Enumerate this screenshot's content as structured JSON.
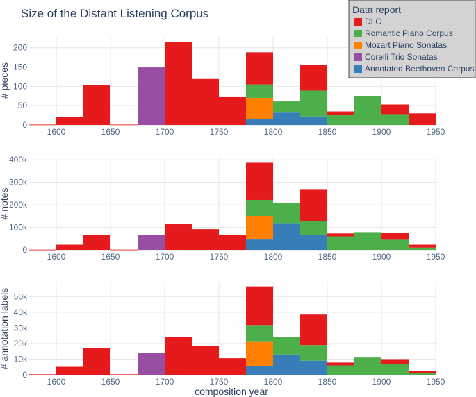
{
  "chart_data": {
    "type": "bar",
    "title": "Size of the Distant Listening Corpus",
    "xlabel": "composition year",
    "x_range": [
      1575,
      1950
    ],
    "x_ticks": [
      1600,
      1650,
      1700,
      1750,
      1800,
      1850,
      1900,
      1950
    ],
    "bin_width": 25,
    "bin_starts": [
      1575,
      1600,
      1625,
      1650,
      1675,
      1700,
      1725,
      1750,
      1775,
      1800,
      1825,
      1850,
      1875,
      1900,
      1925
    ],
    "barmode": "stack",
    "legend": {
      "title": "Data report",
      "position": "top-right",
      "entries": [
        "DLC",
        "Romantic Piano Corpus",
        "Mozart Piano Sonatas",
        "Corelli Trio Sonatas",
        "Annotated Beethoven Corpus"
      ]
    },
    "series_colors": {
      "DLC": "#e41a1c",
      "Romantic Piano Corpus": "#4daf4a",
      "Mozart Piano Sonatas": "#ff7f00",
      "Corelli Trio Sonatas": "#984ea3",
      "Annotated Beethoven Corpus": "#377eb8"
    },
    "panels": [
      {
        "ylabel": "# pieces",
        "ylim": [
          0,
          230
        ],
        "y_ticks": [
          0,
          50,
          100,
          150,
          200
        ],
        "y_tick_labels": [
          "0",
          "50",
          "100",
          "150",
          "200"
        ],
        "series": [
          {
            "name": "Annotated Beethoven Corpus",
            "values": [
              0,
              0,
              0,
              0,
              0,
              0,
              0,
              0,
              16,
              32,
              22,
              0,
              0,
              0,
              0
            ]
          },
          {
            "name": "Corelli Trio Sonatas",
            "values": [
              0,
              0,
              0,
              0,
              149,
              0,
              0,
              0,
              0,
              0,
              0,
              0,
              0,
              0,
              0
            ]
          },
          {
            "name": "Mozart Piano Sonatas",
            "values": [
              0,
              0,
              0,
              0,
              0,
              0,
              0,
              0,
              54,
              0,
              0,
              0,
              0,
              0,
              0
            ]
          },
          {
            "name": "Romantic Piano Corpus",
            "values": [
              0,
              0,
              0,
              0,
              0,
              0,
              0,
              0,
              35,
              29,
              67,
              26,
              75,
              28,
              0
            ]
          },
          {
            "name": "DLC",
            "values": [
              1,
              20,
              103,
              1,
              0,
              215,
              119,
              72,
              83,
              0,
              66,
              9,
              0,
              25,
              30
            ]
          }
        ]
      },
      {
        "ylabel": "# notes",
        "ylim": [
          0,
          410000
        ],
        "y_ticks": [
          0,
          100000,
          200000,
          300000,
          400000
        ],
        "y_tick_labels": [
          "0",
          "100k",
          "200k",
          "300k",
          "400k"
        ],
        "series": [
          {
            "name": "Annotated Beethoven Corpus",
            "values": [
              0,
              0,
              0,
              0,
              0,
              0,
              0,
              0,
              46000,
              116000,
              67000,
              0,
              0,
              0,
              0
            ]
          },
          {
            "name": "Corelli Trio Sonatas",
            "values": [
              0,
              0,
              0,
              0,
              67000,
              0,
              0,
              0,
              0,
              0,
              0,
              0,
              0,
              0,
              0
            ]
          },
          {
            "name": "Mozart Piano Sonatas",
            "values": [
              0,
              0,
              0,
              0,
              0,
              0,
              0,
              0,
              105000,
              0,
              0,
              0,
              0,
              0,
              0
            ]
          },
          {
            "name": "Romantic Piano Corpus",
            "values": [
              0,
              0,
              0,
              0,
              0,
              0,
              0,
              0,
              71000,
              91000,
              62000,
              60000,
              79000,
              45000,
              10000
            ]
          },
          {
            "name": "DLC",
            "values": [
              1000,
              23000,
              67000,
              1000,
              0,
              114000,
              92000,
              65000,
              165000,
              0,
              138000,
              13000,
              0,
              30000,
              13000
            ]
          }
        ]
      },
      {
        "ylabel": "# annotation labels",
        "ylim": [
          0,
          59000
        ],
        "y_ticks": [
          0,
          10000,
          20000,
          30000,
          40000,
          50000
        ],
        "y_tick_labels": [
          "0",
          "10k",
          "20k",
          "30k",
          "40k",
          "50k"
        ],
        "series": [
          {
            "name": "Annotated Beethoven Corpus",
            "values": [
              0,
              0,
              0,
              0,
              0,
              0,
              0,
              0,
              5800,
              13000,
              9000,
              0,
              0,
              0,
              0
            ]
          },
          {
            "name": "Corelli Trio Sonatas",
            "values": [
              0,
              0,
              0,
              0,
              14000,
              0,
              0,
              0,
              0,
              0,
              0,
              0,
              0,
              0,
              0
            ]
          },
          {
            "name": "Mozart Piano Sonatas",
            "values": [
              0,
              0,
              0,
              0,
              0,
              0,
              0,
              0,
              15200,
              0,
              0,
              0,
              0,
              0,
              0
            ]
          },
          {
            "name": "Romantic Piano Corpus",
            "values": [
              0,
              0,
              0,
              0,
              0,
              0,
              0,
              0,
              10800,
              11300,
              10000,
              6000,
              11000,
              7000,
              1200
            ]
          },
          {
            "name": "DLC",
            "values": [
              300,
              5100,
              17200,
              300,
              0,
              24200,
              18400,
              10600,
              24700,
              0,
              19500,
              1800,
              0,
              3000,
              1300
            ]
          }
        ]
      }
    ]
  }
}
